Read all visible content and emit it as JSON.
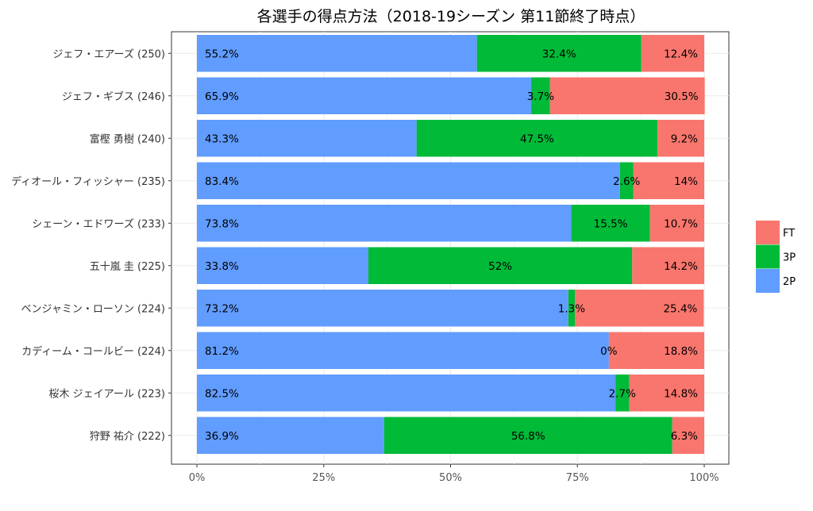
{
  "chart_data": {
    "type": "bar",
    "orientation": "horizontal",
    "stacked": true,
    "title": "各選手の得点方法（2018-19シーズン 第11節終了時点）",
    "categories": [
      "ジェフ・エアーズ (250)",
      "ジェフ・ギブス (246)",
      "富樫 勇樹 (240)",
      "ディオール・フィッシャー (235)",
      "シェーン・エドワーズ (233)",
      "五十嵐 圭 (225)",
      "ベンジャミン・ローソン (224)",
      "カディーム・コールビー (224)",
      "桜木 ジェイアール (223)",
      "狩野 祐介 (222)"
    ],
    "series": [
      {
        "name": "2P",
        "color": "#619CFF",
        "values": [
          55.2,
          65.9,
          43.3,
          83.4,
          73.8,
          33.8,
          73.2,
          81.2,
          82.5,
          36.9
        ],
        "labels": [
          "55.2%",
          "65.9%",
          "43.3%",
          "83.4%",
          "73.8%",
          "33.8%",
          "73.2%",
          "81.2%",
          "82.5%",
          "36.9%"
        ]
      },
      {
        "name": "3P",
        "color": "#00BA38",
        "values": [
          32.4,
          3.7,
          47.5,
          2.6,
          15.5,
          52,
          1.3,
          0,
          2.7,
          56.8
        ],
        "labels": [
          "32.4%",
          "3.7%",
          "47.5%",
          "2.6%",
          "15.5%",
          "52%",
          "1.3%",
          "0%",
          "2.7%",
          "56.8%"
        ]
      },
      {
        "name": "FT",
        "color": "#F8766D",
        "values": [
          12.4,
          30.5,
          9.2,
          14,
          10.7,
          14.2,
          25.4,
          18.8,
          14.8,
          6.3
        ],
        "labels": [
          "12.4%",
          "30.5%",
          "9.2%",
          "14%",
          "10.7%",
          "14.2%",
          "25.4%",
          "18.8%",
          "14.8%",
          "6.3%"
        ]
      }
    ],
    "xticks": [
      "0%",
      "25%",
      "50%",
      "75%",
      "100%"
    ],
    "xlim": [
      0,
      100
    ],
    "legend": {
      "position": "right",
      "entries": [
        "FT",
        "3P",
        "2P"
      ]
    },
    "grid": true,
    "panel_background": "#ffffff",
    "grid_color": "#ebebeb"
  }
}
